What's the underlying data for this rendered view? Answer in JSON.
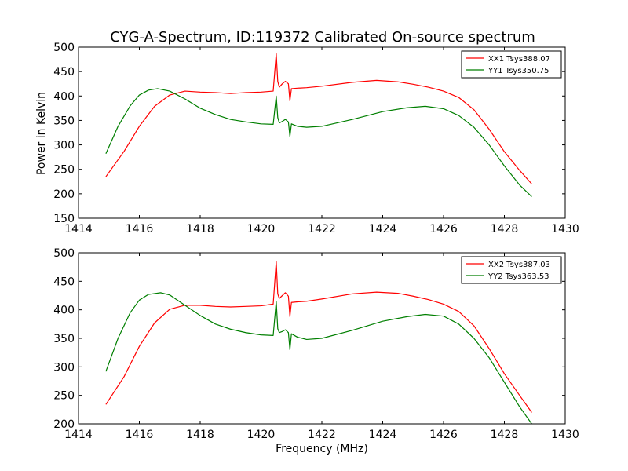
{
  "chart_data": {
    "type": "line",
    "title": "CYG-A-Spectrum, ID:119372 Calibrated On-source spectrum",
    "xlabel": "Frequency (MHz)",
    "ylabel": "Power in Kelvin",
    "grid": false,
    "legend_placement": "top-right",
    "colors": {
      "red": "#ff0000",
      "green": "#007f00"
    },
    "panels": [
      {
        "xlim": [
          1414,
          1430
        ],
        "ylim": [
          150,
          500
        ],
        "xticks": [
          1414,
          1416,
          1418,
          1420,
          1422,
          1424,
          1426,
          1428,
          1430
        ],
        "yticks": [
          150,
          200,
          250,
          300,
          350,
          400,
          450,
          500
        ],
        "series": [
          {
            "name": "XX1 Tsys388.07",
            "color": "#ff0000",
            "x": [
              1414.9,
              1415.5,
              1416.0,
              1416.5,
              1417.0,
              1417.5,
              1418.0,
              1418.5,
              1419.0,
              1419.5,
              1420.0,
              1420.4,
              1420.5,
              1420.55,
              1420.6,
              1420.7,
              1420.8,
              1420.9,
              1420.95,
              1421.0,
              1421.2,
              1421.5,
              1422.0,
              1423.0,
              1423.8,
              1424.5,
              1425.0,
              1425.5,
              1426.0,
              1426.5,
              1427.0,
              1427.5,
              1428.0,
              1428.5,
              1428.9
            ],
            "y": [
              235,
              287,
              338,
              379,
              402,
              410,
              408,
              407,
              405,
              407,
              408,
              410,
              487,
              430,
              418,
              425,
              430,
              425,
              390,
              415,
              416,
              417,
              420,
              428,
              432,
              429,
              424,
              418,
              410,
              397,
              372,
              332,
              286,
              248,
              220
            ]
          },
          {
            "name": "YY1 Tsys350.75",
            "color": "#007f00",
            "x": [
              1414.9,
              1415.3,
              1415.7,
              1416.0,
              1416.3,
              1416.6,
              1417.0,
              1417.5,
              1418.0,
              1418.5,
              1419.0,
              1419.5,
              1420.0,
              1420.4,
              1420.5,
              1420.55,
              1420.6,
              1420.7,
              1420.8,
              1420.9,
              1420.95,
              1421.0,
              1421.2,
              1421.5,
              1422.0,
              1423.0,
              1424.0,
              1424.8,
              1425.4,
              1426.0,
              1426.5,
              1427.0,
              1427.5,
              1428.0,
              1428.5,
              1428.9
            ],
            "y": [
              282,
              338,
              380,
              402,
              412,
              415,
              410,
              394,
              375,
              362,
              352,
              347,
              343,
              342,
              400,
              356,
              345,
              348,
              352,
              347,
              317,
              343,
              338,
              336,
              338,
              352,
              368,
              376,
              379,
              374,
              360,
              336,
              300,
              257,
              218,
              194
            ]
          }
        ]
      },
      {
        "xlim": [
          1414,
          1430
        ],
        "ylim": [
          200,
          500
        ],
        "xticks": [
          1414,
          1416,
          1418,
          1420,
          1422,
          1424,
          1426,
          1428,
          1430
        ],
        "yticks": [
          200,
          250,
          300,
          350,
          400,
          450,
          500
        ],
        "series": [
          {
            "name": "XX2 Tsys387.03",
            "color": "#ff0000",
            "x": [
              1414.9,
              1415.5,
              1416.0,
              1416.5,
              1417.0,
              1417.5,
              1418.0,
              1418.5,
              1419.0,
              1419.5,
              1420.0,
              1420.4,
              1420.5,
              1420.55,
              1420.6,
              1420.7,
              1420.8,
              1420.9,
              1420.95,
              1421.0,
              1421.2,
              1421.5,
              1422.0,
              1423.0,
              1423.8,
              1424.5,
              1425.0,
              1425.5,
              1426.0,
              1426.5,
              1427.0,
              1427.5,
              1428.0,
              1428.5,
              1428.9
            ],
            "y": [
              234,
              283,
              336,
              377,
              401,
              408,
              408,
              406,
              405,
              406,
              407,
              410,
              485,
              428,
              420,
              425,
              430,
              424,
              388,
              413,
              414,
              415,
              419,
              428,
              431,
              429,
              424,
              418,
              410,
              397,
              372,
              332,
              288,
              250,
              220
            ]
          },
          {
            "name": "YY2 Tsys363.53",
            "color": "#007f00",
            "x": [
              1414.9,
              1415.3,
              1415.7,
              1416.0,
              1416.3,
              1416.7,
              1417.0,
              1417.5,
              1418.0,
              1418.5,
              1419.0,
              1419.5,
              1420.0,
              1420.4,
              1420.5,
              1420.55,
              1420.6,
              1420.7,
              1420.8,
              1420.9,
              1420.95,
              1421.0,
              1421.2,
              1421.5,
              1422.0,
              1423.0,
              1424.0,
              1424.8,
              1425.4,
              1426.0,
              1426.5,
              1427.0,
              1427.5,
              1428.0,
              1428.5,
              1428.9
            ],
            "y": [
              292,
              350,
              395,
              417,
              427,
              430,
              426,
              408,
              390,
              375,
              366,
              360,
              356,
              355,
              415,
              367,
              360,
              362,
              365,
              360,
              330,
              358,
              352,
              348,
              350,
              364,
              380,
              388,
              392,
              389,
              375,
              350,
              316,
              273,
              230,
              200
            ]
          }
        ]
      }
    ]
  }
}
